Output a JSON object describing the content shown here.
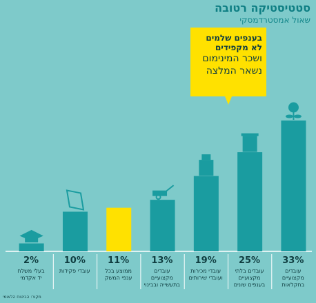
{
  "chart_data": {
    "type": "bar",
    "header": "סטטיסטיקה רטובה",
    "author": "שאול אמסטרדמסקי",
    "title_lines": [
      "בענפים שלמים",
      "לא מקפידים",
      "ושכר המינימום",
      "נשאר המלצה"
    ],
    "categories": [
      "בעלי משלח\nיד אקדמי",
      "עובדי פקידות",
      "ממוצע בכל\nענפי המשק",
      "עובדים\nמקצועיים\nבתעשייה ובבינוי",
      "עובדי מכירות\nועובדי שירותים",
      "עובדים בלתי\nמקצועיים\nבענפים שונים",
      "עובדים\nמקצועיים\nבחקלאות"
    ],
    "values": [
      2,
      10,
      11,
      13,
      19,
      25,
      33
    ],
    "value_labels": [
      "2%",
      "10%",
      "11%",
      "13%",
      "19%",
      "25%",
      "33%"
    ],
    "colors": [
      "#1a9ca0",
      "#1a9ca0",
      "#ffe100",
      "#1a9ca0",
      "#1a9ca0",
      "#1a9ca0",
      "#1a9ca0"
    ],
    "source": "מקור: הביטוח הלאומי"
  }
}
